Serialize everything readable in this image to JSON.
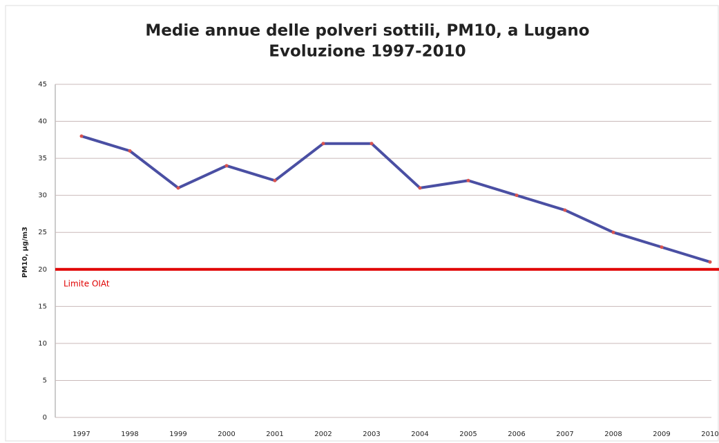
{
  "chart_data": {
    "type": "line",
    "title": "Medie annue delle polveri sottili, PM10, a Lugano",
    "subtitle": "Evoluzione 1997-2010",
    "y_label": "PM10, µg/m3",
    "categories": [
      "1997",
      "1998",
      "1999",
      "2000",
      "2001",
      "2002",
      "2003",
      "2004",
      "2005",
      "2006",
      "2007",
      "2008",
      "2009",
      "2010"
    ],
    "series": [
      {
        "name": "PM10",
        "color": "#4a4fa3",
        "marker_color": "#d9534f",
        "values": [
          38,
          36,
          31,
          34,
          32,
          37,
          37,
          31,
          32,
          30,
          28,
          25,
          23,
          21
        ]
      }
    ],
    "ylim": [
      0,
      45
    ],
    "yticks": [
      0,
      5,
      10,
      15,
      20,
      25,
      30,
      35,
      40,
      45
    ],
    "grid": true,
    "reference_line": {
      "value": 20,
      "label": "Limite OIAt",
      "color": "#e00000"
    }
  }
}
